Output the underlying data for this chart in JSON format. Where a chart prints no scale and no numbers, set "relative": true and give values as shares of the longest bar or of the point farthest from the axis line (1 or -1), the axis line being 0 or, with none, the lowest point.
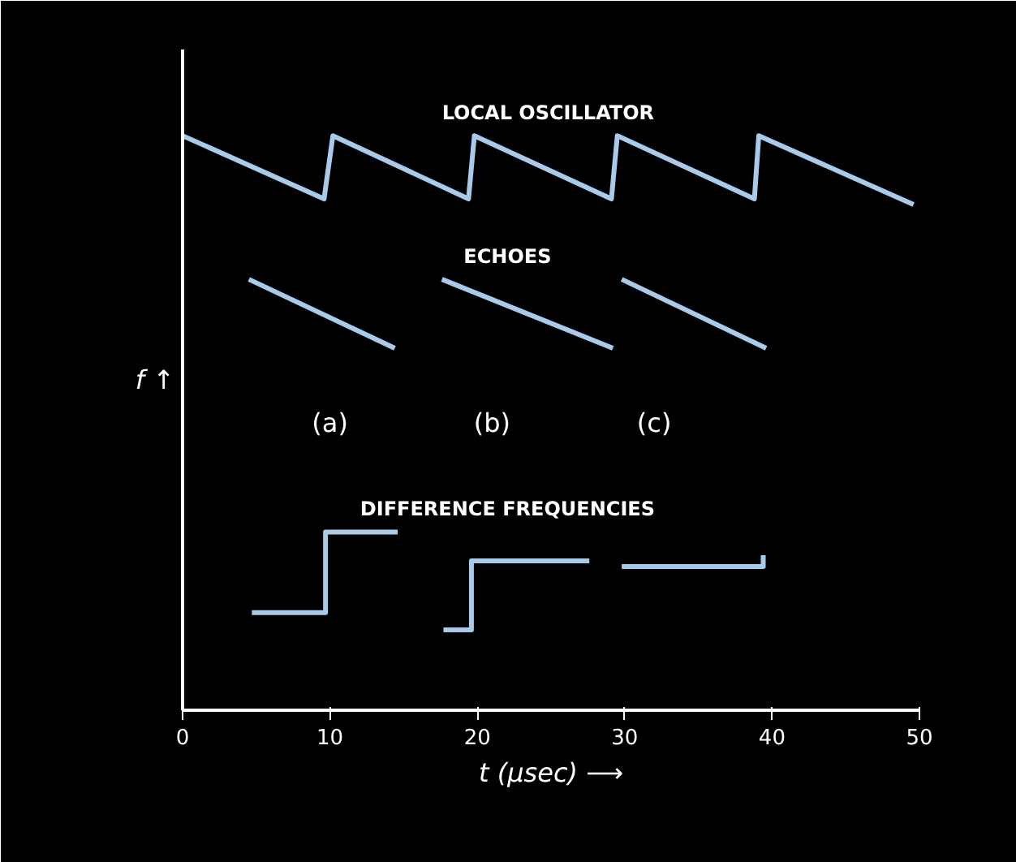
{
  "chart_data": {
    "type": "line",
    "relative": true,
    "xlabel": "t (μsec) ⟶",
    "ylabel": "f ↑",
    "xlim": [
      0,
      50
    ],
    "xticks": [
      0,
      10,
      20,
      30,
      40,
      50
    ],
    "series": [
      {
        "name": "LOCAL OSCILLATOR",
        "color": "#a9cbea",
        "x": [
          0,
          9.6,
          10.2,
          19.4,
          19.8,
          29.1,
          29.5,
          38.8,
          39.1,
          49.6
        ],
        "values": [
          1.0,
          0.89,
          1.0,
          0.89,
          1.0,
          0.89,
          1.0,
          0.89,
          1.0,
          0.88
        ]
      },
      {
        "name": "ECHOES",
        "color": "#a9cbea",
        "x": [
          4.5,
          14.4,
          16,
          17.6,
          29.2,
          29.5,
          29.8,
          39.6
        ],
        "values": [
          0.75,
          0.63,
          null,
          0.75,
          0.63,
          null,
          0.75,
          0.63
        ]
      },
      {
        "name": "DIFFERENCE FREQUENCIES",
        "color": "#a9cbea",
        "x": [
          4.7,
          9.7,
          9.7,
          14.6,
          16,
          17.7,
          19.6,
          19.6,
          27.6,
          28.7,
          29.8,
          39.4,
          39.4
        ],
        "values": [
          0.17,
          0.17,
          0.31,
          0.31,
          null,
          0.14,
          0.14,
          0.26,
          0.26,
          null,
          0.25,
          0.25,
          0.27
        ]
      }
    ],
    "annotations": [
      "(a)",
      "(b)",
      "(c)"
    ]
  }
}
